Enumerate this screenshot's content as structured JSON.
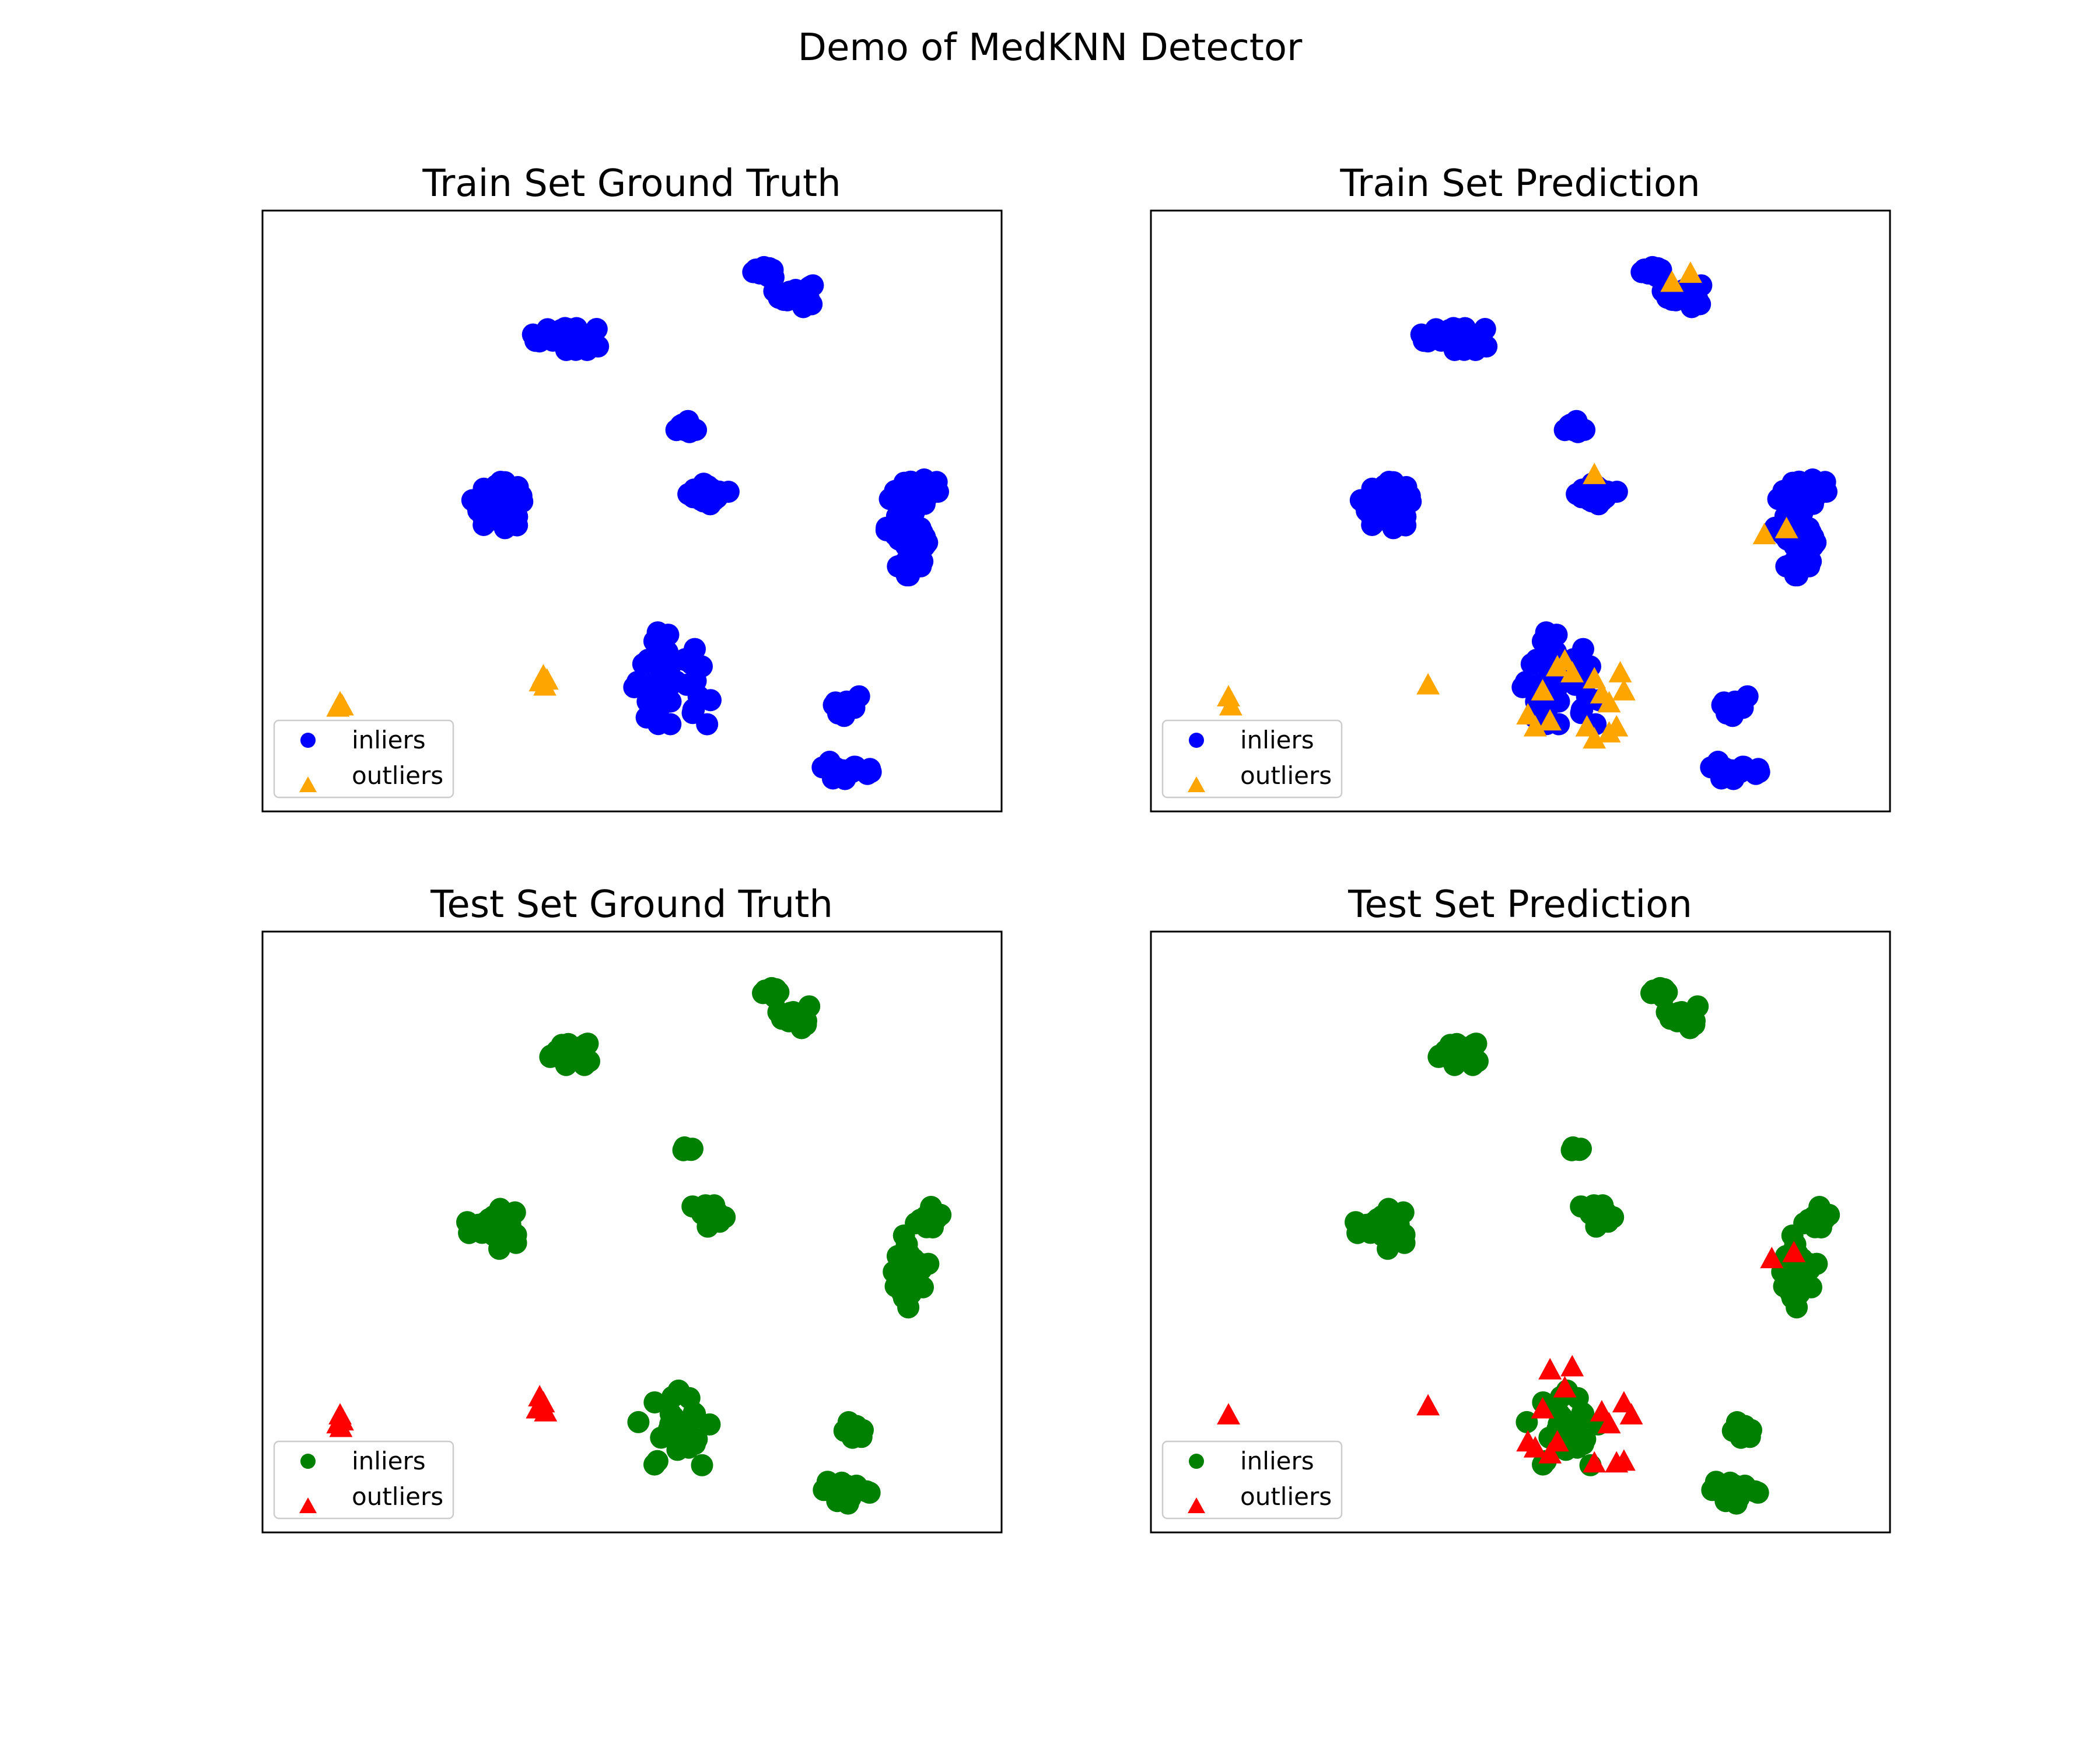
{
  "figure": {
    "suptitle": "Demo of MedKNN Detector"
  },
  "chart_data": [
    {
      "type": "scatter",
      "title": "Train Set Ground Truth",
      "xlim": [
        0,
        100
      ],
      "ylim": [
        0,
        100
      ],
      "ticks_visible": false,
      "legend_position": "lower-left",
      "series": [
        {
          "name": "inliers",
          "marker": "circle",
          "color": "#0000ff",
          "clusters": [
            [
              68,
              90,
              1.5,
              1.5,
              12
            ],
            [
              72,
              86,
              2.5,
              2,
              30
            ],
            [
              41,
              79,
              4,
              2,
              40
            ],
            [
              57,
              64,
              1.5,
              1.2,
              10
            ],
            [
              60,
              53,
              3,
              2,
              20
            ],
            [
              32,
              51,
              3.5,
              3.5,
              50
            ],
            [
              87,
              47,
              2.5,
              7,
              30
            ],
            [
              90,
              53,
              2.5,
              2.5,
              20
            ],
            [
              89,
              43,
              1.5,
              2,
              10
            ],
            [
              55,
              21,
              5.5,
              8,
              40
            ],
            [
              79,
              17,
              2,
              2,
              12
            ],
            [
              79,
              7,
              3,
              2,
              20
            ]
          ]
        },
        {
          "name": "outliers",
          "marker": "triangle",
          "color": "#ffa500",
          "points": [
            [
              10.5,
              18
            ],
            [
              10.8,
              17.5
            ],
            [
              10.2,
              17.3
            ],
            [
              38,
              22.5
            ],
            [
              38.5,
              21.8
            ],
            [
              37.6,
              21.5
            ],
            [
              38.2,
              20.8
            ]
          ]
        }
      ]
    },
    {
      "type": "scatter",
      "title": "Train Set Prediction",
      "xlim": [
        0,
        100
      ],
      "ylim": [
        0,
        100
      ],
      "ticks_visible": false,
      "legend_position": "lower-left",
      "series": [
        {
          "name": "inliers",
          "marker": "circle",
          "color": "#0000ff",
          "clusters": [
            [
              68,
              90,
              1.5,
              1.5,
              12
            ],
            [
              72,
              86,
              2.5,
              2,
              30
            ],
            [
              41,
              79,
              4,
              2,
              40
            ],
            [
              57,
              64,
              1.5,
              1.2,
              10
            ],
            [
              60,
              53,
              3,
              2,
              20
            ],
            [
              32,
              51,
              3.5,
              3.5,
              50
            ],
            [
              87,
              47,
              2.5,
              7,
              30
            ],
            [
              90,
              53,
              2.5,
              2.5,
              20
            ],
            [
              89,
              43,
              1.5,
              2,
              10
            ],
            [
              55,
              21,
              5.5,
              8,
              40
            ],
            [
              79,
              17,
              2,
              2,
              12
            ],
            [
              79,
              7,
              3,
              2,
              20
            ]
          ]
        },
        {
          "name": "outliers",
          "marker": "triangle",
          "color": "#ffa500",
          "points": [
            [
              10.5,
              19
            ],
            [
              10.8,
              17.5
            ],
            [
              37.5,
              21
            ],
            [
              70.5,
              88
            ],
            [
              73,
              89.5
            ],
            [
              60,
              56
            ],
            [
              83,
              46
            ],
            [
              86,
              47
            ],
            [
              56,
              25
            ],
            [
              55,
              24
            ],
            [
              53,
              20
            ],
            [
              51,
              16
            ],
            [
              52,
              14
            ],
            [
              54,
              15
            ],
            [
              57,
              23
            ],
            [
              60,
              22
            ],
            [
              61,
              19.5
            ],
            [
              62,
              18
            ],
            [
              59,
              14
            ],
            [
              60,
              12
            ],
            [
              62,
              13
            ],
            [
              63.5,
              23
            ],
            [
              64,
              20
            ],
            [
              63,
              14
            ]
          ]
        }
      ]
    },
    {
      "type": "scatter",
      "title": "Test Set Ground Truth",
      "xlim": [
        0,
        100
      ],
      "ylim": [
        0,
        100
      ],
      "ticks_visible": false,
      "legend_position": "lower-left",
      "series": [
        {
          "name": "inliers",
          "marker": "circle",
          "color": "#008000",
          "clusters": [
            [
              69,
              90,
              1.2,
              1.5,
              8
            ],
            [
              72,
              86,
              2,
              2,
              14
            ],
            [
              41,
              80,
              3.5,
              2,
              25
            ],
            [
              58,
              64,
              1.2,
              1,
              6
            ],
            [
              60,
              53,
              3,
              2,
              12
            ],
            [
              31,
              51,
              3,
              3.5,
              25
            ],
            [
              87,
              44,
              2,
              7,
              20
            ],
            [
              90,
              52,
              2,
              2,
              12
            ],
            [
              89,
              43,
              1.5,
              2,
              6
            ],
            [
              56,
              17,
              5,
              6,
              28
            ],
            [
              80,
              17,
              1.5,
              2,
              8
            ],
            [
              79,
              7,
              3,
              2,
              14
            ]
          ]
        },
        {
          "name": "outliers",
          "marker": "triangle",
          "color": "#ff0000",
          "points": [
            [
              10.5,
              19.5
            ],
            [
              10.8,
              18.5
            ],
            [
              10.2,
              18
            ],
            [
              10.6,
              17.4
            ],
            [
              37.5,
              22.5
            ],
            [
              38,
              21.5
            ],
            [
              37.2,
              20.5
            ],
            [
              38.3,
              20
            ]
          ]
        }
      ]
    },
    {
      "type": "scatter",
      "title": "Test Set Prediction",
      "xlim": [
        0,
        100
      ],
      "ylim": [
        0,
        100
      ],
      "ticks_visible": false,
      "legend_position": "lower-left",
      "series": [
        {
          "name": "inliers",
          "marker": "circle",
          "color": "#008000",
          "clusters": [
            [
              69,
              90,
              1.2,
              1.5,
              8
            ],
            [
              72,
              86,
              2,
              2,
              14
            ],
            [
              41,
              80,
              3.5,
              2,
              25
            ],
            [
              58,
              64,
              1.2,
              1,
              6
            ],
            [
              60,
              53,
              3,
              2,
              12
            ],
            [
              31,
              51,
              3,
              3.5,
              25
            ],
            [
              87,
              44,
              2,
              7,
              20
            ],
            [
              90,
              52,
              2,
              2,
              12
            ],
            [
              89,
              43,
              1.5,
              2,
              6
            ],
            [
              56,
              17,
              5,
              6,
              28
            ],
            [
              80,
              17,
              1.5,
              2,
              8
            ],
            [
              79,
              7,
              3,
              2,
              14
            ]
          ]
        },
        {
          "name": "outliers",
          "marker": "triangle",
          "color": "#ff0000",
          "points": [
            [
              10.5,
              19.5
            ],
            [
              37.5,
              21
            ],
            [
              84,
              45.5
            ],
            [
              87,
              46.5
            ],
            [
              54,
              27
            ],
            [
              57,
              27.5
            ],
            [
              56,
              24
            ],
            [
              53,
              20.5
            ],
            [
              51,
              15
            ],
            [
              52,
              14
            ],
            [
              54,
              13
            ],
            [
              55,
              15
            ],
            [
              61,
              20
            ],
            [
              62,
              18
            ],
            [
              64,
              21.5
            ],
            [
              65,
              19.5
            ],
            [
              60,
              11.5
            ],
            [
              63,
              11.5
            ],
            [
              64,
              11.8
            ]
          ]
        }
      ]
    }
  ]
}
